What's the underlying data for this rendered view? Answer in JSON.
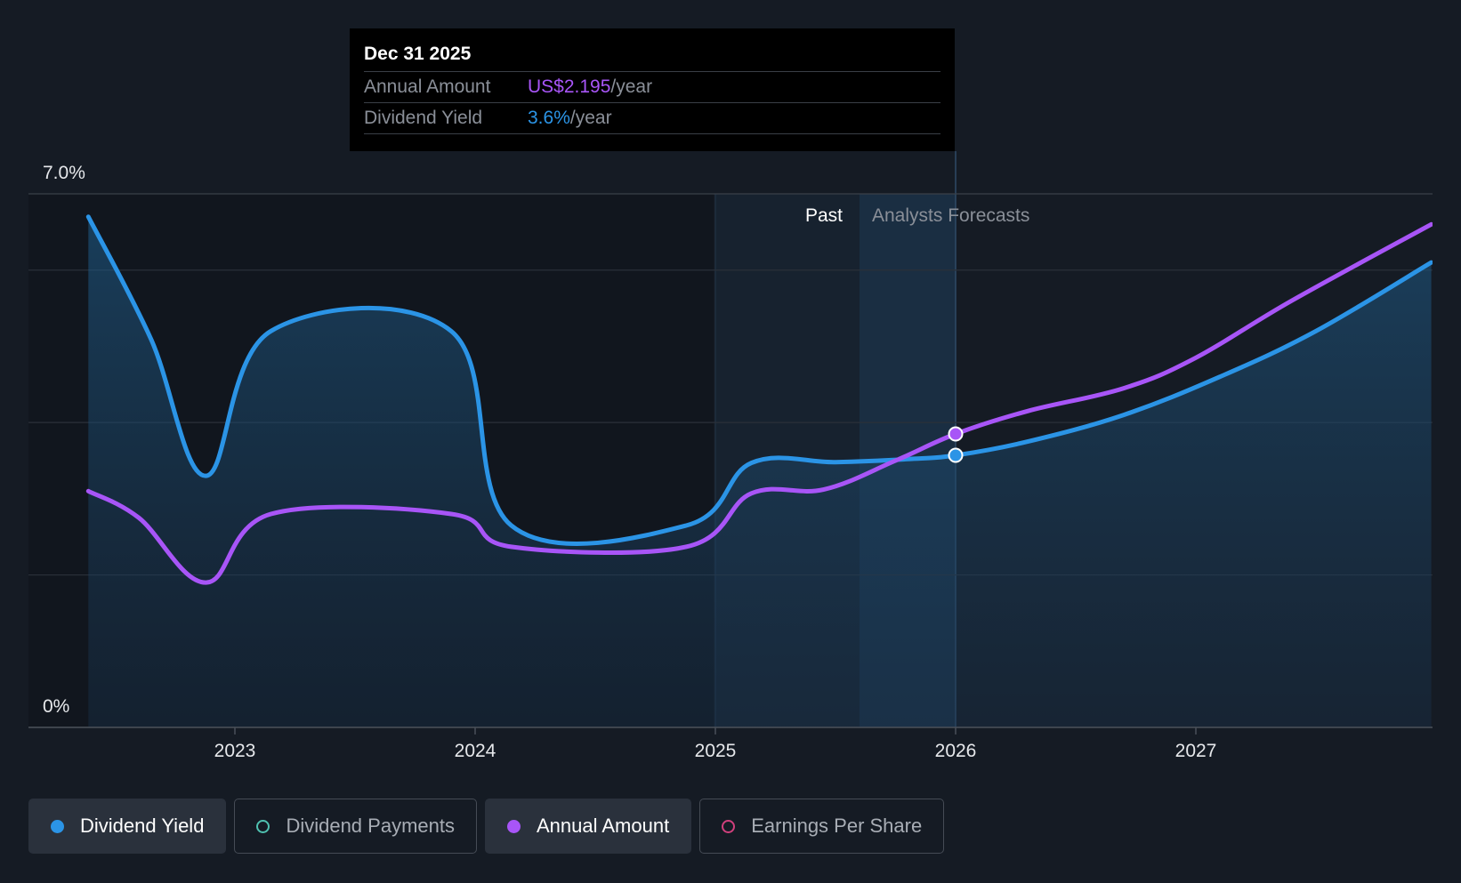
{
  "tooltip": {
    "date": "Dec 31 2025",
    "rows": [
      {
        "label": "Annual Amount",
        "value": "US$2.195",
        "unit": "/year",
        "color": "#a855f7"
      },
      {
        "label": "Dividend Yield",
        "value": "3.6%",
        "unit": "/year",
        "color": "#2b94e6"
      }
    ]
  },
  "chart_data": {
    "type": "line",
    "y_axis": {
      "labels": [
        "7.0%",
        "0%"
      ],
      "ylim": [
        0,
        7.0
      ],
      "gridlines": [
        0,
        2.0,
        4.0,
        6.0,
        7.0
      ]
    },
    "x_axis": {
      "ticks": [
        "2023",
        "2024",
        "2025",
        "2026",
        "2027"
      ],
      "tick_values": [
        2023.0,
        2024.0,
        2025.0,
        2026.0,
        2027.0
      ],
      "xlim": [
        2022.15,
        2027.98
      ]
    },
    "regions": {
      "past_label": "Past",
      "forecast_label": "Analysts Forecasts",
      "divider_x": 2026.0,
      "highlight_start": 2025.0,
      "highlight_forecast_band_start": 2025.6
    },
    "series": [
      {
        "name": "Dividend Yield",
        "color": "#2b94e6",
        "fill": true,
        "points": [
          [
            2022.39,
            6.7
          ],
          [
            2022.65,
            5.1
          ],
          [
            2022.88,
            3.3
          ],
          [
            2023.15,
            5.2
          ],
          [
            2023.9,
            5.2
          ],
          [
            2024.15,
            2.65
          ],
          [
            2024.88,
            2.65
          ],
          [
            2025.15,
            3.47
          ],
          [
            2025.5,
            3.48
          ],
          [
            2025.8,
            3.52
          ],
          [
            2026.0,
            3.57
          ],
          [
            2026.3,
            3.75
          ],
          [
            2026.7,
            4.1
          ],
          [
            2027.1,
            4.6
          ],
          [
            2027.5,
            5.2
          ],
          [
            2027.98,
            6.1
          ]
        ]
      },
      {
        "name": "Annual Amount",
        "color": "#a855f7",
        "fill": false,
        "points": [
          [
            2022.39,
            3.1
          ],
          [
            2022.6,
            2.75
          ],
          [
            2022.88,
            1.9
          ],
          [
            2023.15,
            2.8
          ],
          [
            2023.9,
            2.8
          ],
          [
            2024.15,
            2.37
          ],
          [
            2024.88,
            2.37
          ],
          [
            2025.15,
            3.07
          ],
          [
            2025.45,
            3.12
          ],
          [
            2025.75,
            3.5
          ],
          [
            2026.0,
            3.85
          ],
          [
            2026.3,
            4.15
          ],
          [
            2026.7,
            4.45
          ],
          [
            2027.0,
            4.85
          ],
          [
            2027.4,
            5.6
          ],
          [
            2027.98,
            6.6
          ]
        ]
      }
    ],
    "highlight_points": [
      {
        "series": "Annual Amount",
        "x": 2026.0,
        "y": 3.85
      },
      {
        "series": "Dividend Yield",
        "x": 2026.0,
        "y": 3.57
      }
    ]
  },
  "legend": [
    {
      "label": "Dividend Yield",
      "color": "#2b94e6",
      "active": true
    },
    {
      "label": "Dividend Payments",
      "color": "#4fc1b0",
      "active": false
    },
    {
      "label": "Annual Amount",
      "color": "#a855f7",
      "active": true
    },
    {
      "label": "Earnings Per Share",
      "color": "#d0407c",
      "active": false
    }
  ]
}
